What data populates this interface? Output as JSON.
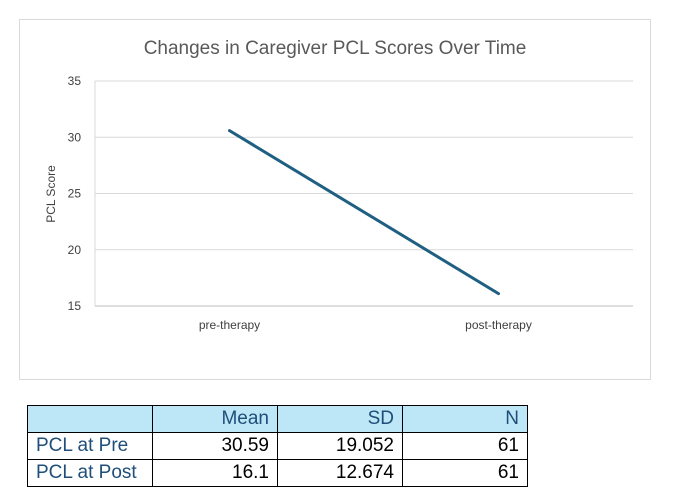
{
  "chart_data": {
    "type": "line",
    "title": "Changes in Caregiver PCL Scores Over Time",
    "xlabel": "",
    "ylabel": "PCL Score",
    "categories": [
      "pre-therapy",
      "post-therapy"
    ],
    "series": [
      {
        "values": [
          30.59,
          16.1
        ],
        "color": "#1f5f82"
      }
    ],
    "ylim": [
      15,
      35
    ],
    "yticks": [
      15,
      20,
      25,
      30,
      35
    ],
    "grid": true,
    "legend": "none"
  },
  "stats_table": {
    "headers": [
      "",
      "Mean",
      "SD",
      "N"
    ],
    "rows": [
      {
        "label": "PCL at Pre",
        "mean": "30.59",
        "sd": "19.052",
        "n": "61"
      },
      {
        "label": "PCL at Post",
        "mean": "16.1",
        "sd": "12.674",
        "n": "61"
      }
    ]
  }
}
